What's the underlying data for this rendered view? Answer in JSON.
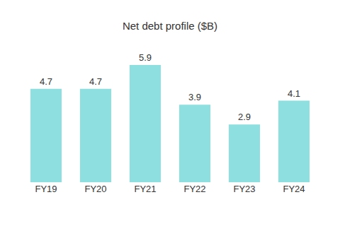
{
  "chart_data": {
    "type": "bar",
    "title": "Net debt profile ($B)",
    "categories": [
      "FY19",
      "FY20",
      "FY21",
      "FY22",
      "FY23",
      "FY24"
    ],
    "values": [
      4.7,
      4.7,
      5.9,
      3.9,
      2.9,
      4.1
    ],
    "color": "#8ee0e0",
    "ylim": [
      0,
      6.5
    ],
    "grid": false,
    "data_labels": true,
    "tick_labels": "x"
  }
}
